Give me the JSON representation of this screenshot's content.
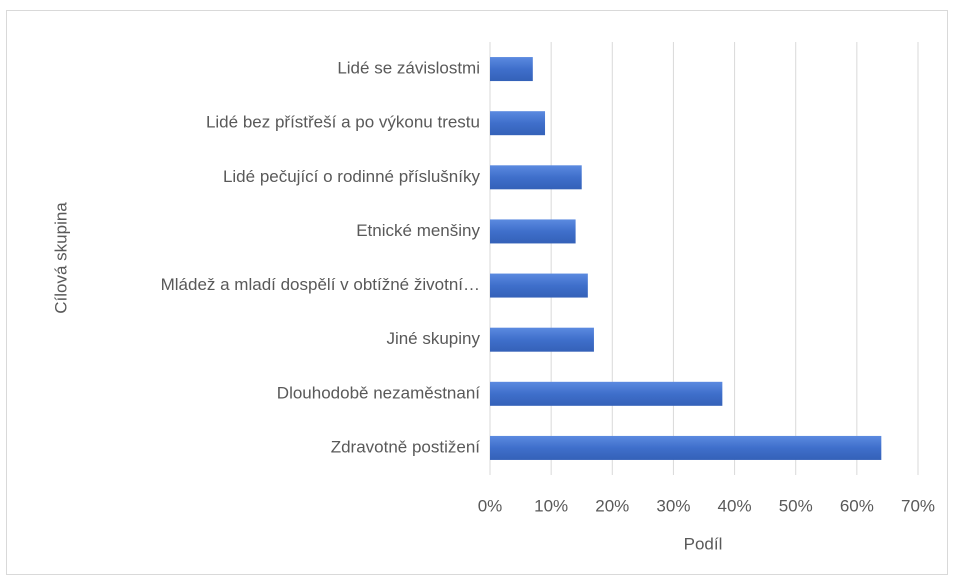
{
  "chart_data": {
    "type": "barh",
    "categories": [
      "Lidé se závislostmi",
      "Lidé bez přístřeší a po výkonu trestu",
      "Lidé pečující o rodinné příslušníky",
      "Etnické menšiny",
      "Mládež a mladí dospělí v obtížné životní…",
      "Jiné skupiny",
      "Dlouhodobě nezaměstnaní",
      "Zdravotně postižení"
    ],
    "values": [
      7,
      9,
      15,
      14,
      16,
      17,
      38,
      64
    ],
    "color": "#4472c4",
    "xlabel": "Podíl",
    "ylabel": "Cílová skupina",
    "xlim": [
      0,
      70
    ],
    "xticks": [
      {
        "value": 0,
        "label": "0%"
      },
      {
        "value": 10,
        "label": "10%"
      },
      {
        "value": 20,
        "label": "20%"
      },
      {
        "value": 30,
        "label": "30%"
      },
      {
        "value": 40,
        "label": "40%"
      },
      {
        "value": 50,
        "label": "50%"
      },
      {
        "value": 60,
        "label": "60%"
      },
      {
        "value": 70,
        "label": "70%"
      }
    ],
    "grid": true
  }
}
